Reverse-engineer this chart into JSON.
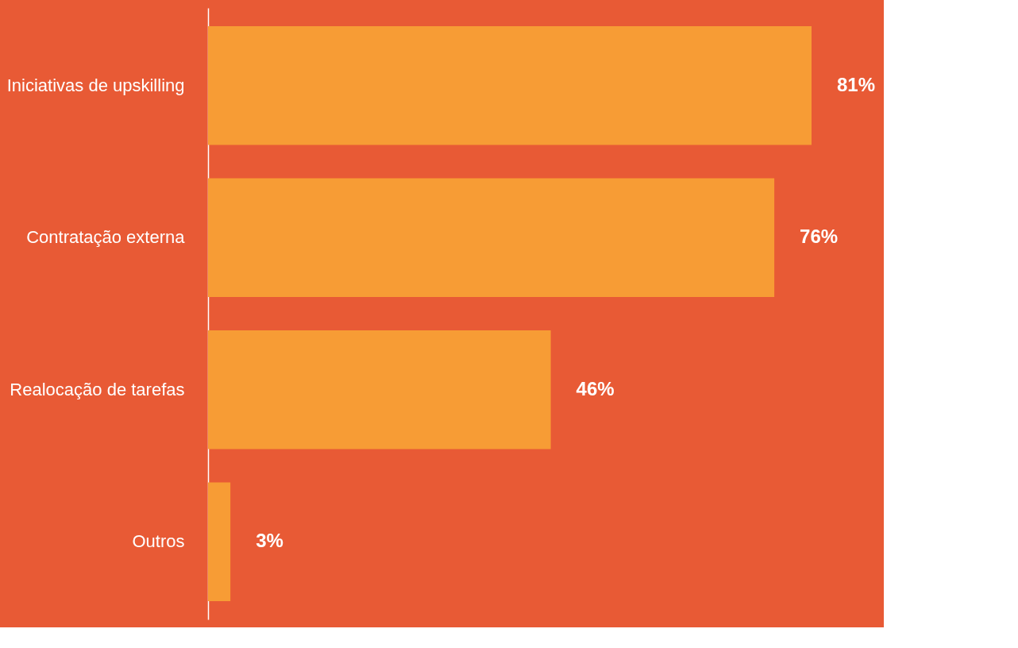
{
  "chart_data": {
    "type": "bar",
    "orientation": "horizontal",
    "categories": [
      "Iniciativas de upskilling",
      "Contratação externa",
      "Realocação de tarefas",
      "Outros"
    ],
    "values": [
      81,
      76,
      46,
      3
    ],
    "value_labels": [
      "81%",
      "76%",
      "46%",
      "3%"
    ],
    "color": "#f79c35",
    "grid": false
  }
}
